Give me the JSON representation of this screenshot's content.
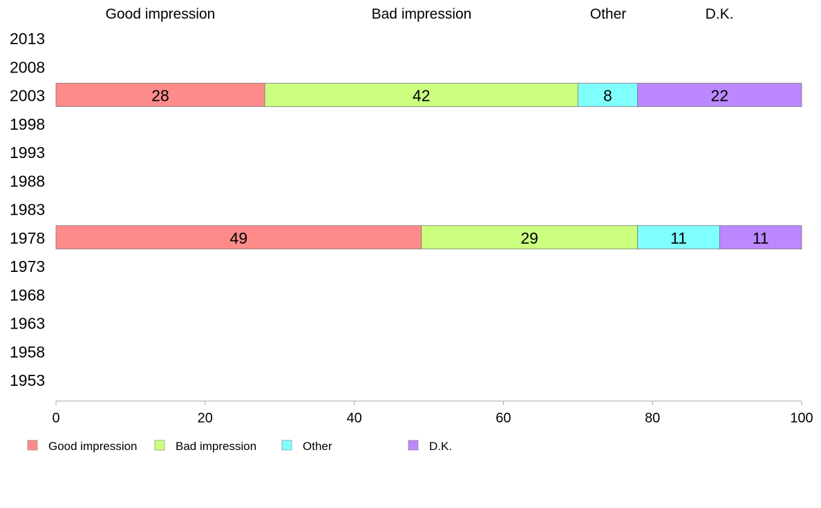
{
  "chart_data": {
    "type": "bar",
    "orientation": "horizontal",
    "stacked": true,
    "categories": [
      "2013",
      "2008",
      "2003",
      "1998",
      "1993",
      "1988",
      "1983",
      "1978",
      "1973",
      "1968",
      "1963",
      "1958",
      "1953"
    ],
    "series": [
      {
        "name": "Good impression",
        "color": "#ff8a8a",
        "values": [
          null,
          null,
          28,
          null,
          null,
          null,
          null,
          49,
          null,
          null,
          null,
          null,
          null
        ]
      },
      {
        "name": "Bad impression",
        "color": "#ccff80",
        "values": [
          null,
          null,
          42,
          null,
          null,
          null,
          null,
          29,
          null,
          null,
          null,
          null,
          null
        ]
      },
      {
        "name": "Other",
        "color": "#80ffff",
        "values": [
          null,
          null,
          8,
          null,
          null,
          null,
          null,
          11,
          null,
          null,
          null,
          null,
          null
        ]
      },
      {
        "name": "D.K.",
        "color": "#bb88ff",
        "values": [
          null,
          null,
          22,
          null,
          null,
          null,
          null,
          11,
          null,
          null,
          null,
          null,
          null
        ]
      }
    ],
    "column_headers": [
      "Good impression",
      "Bad impression",
      "Other",
      "D.K."
    ],
    "xlim": [
      0,
      100
    ],
    "x_ticks": [
      0,
      20,
      40,
      60,
      80,
      100
    ],
    "grid": false,
    "legend_placement": "bottom-left",
    "xlabel": "",
    "ylabel": ""
  }
}
